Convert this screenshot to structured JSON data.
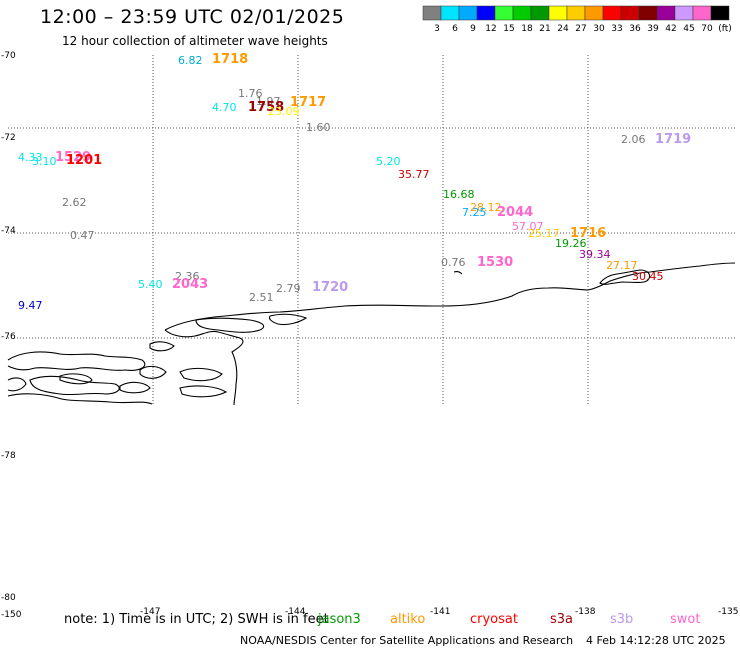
{
  "header": {
    "title": "12:00 – 23:59 UTC 02/01/2025",
    "subtitle": "12 hour collection of altimeter wave heights"
  },
  "colorbar": {
    "labels": [
      "3",
      "6",
      "9",
      "12",
      "15",
      "18",
      "21",
      "24",
      "27",
      "30",
      "33",
      "36",
      "39",
      "42",
      "45",
      "70",
      "(ft)"
    ],
    "colors": [
      "#808080",
      "#00e5ff",
      "#00aaff",
      "#0000ff",
      "#33ff33",
      "#00cc00",
      "#009900",
      "#ffff00",
      "#ffcc00",
      "#ff9900",
      "#ff0000",
      "#cc0000",
      "#800000",
      "#990099",
      "#cc99ff",
      "#ff66cc",
      "#000000"
    ]
  },
  "axes": {
    "latitudes": [
      "-70",
      "-72",
      "-74",
      "-76",
      "-78",
      "-80"
    ],
    "longitudes": [
      "-150",
      "-147",
      "-144",
      "-141",
      "-138",
      "-135"
    ]
  },
  "observations": [
    {
      "text": "6.82",
      "type": "swh",
      "color": "#00aacc"
    },
    {
      "text": "1718",
      "type": "time",
      "color": "#ff9900"
    },
    {
      "text": "1.76",
      "type": "swh",
      "color": "#777777"
    },
    {
      "text": "1.97",
      "type": "swh",
      "color": "#777777"
    },
    {
      "text": "1717",
      "type": "time",
      "color": "#ff9900"
    },
    {
      "text": "4.70",
      "type": "swh",
      "color": "#00e5e5"
    },
    {
      "text": "1758",
      "type": "time",
      "color": "#990000"
    },
    {
      "text": "23.09",
      "type": "swh",
      "color": "#ffee00"
    },
    {
      "text": "1.60",
      "type": "swh",
      "color": "#777777"
    },
    {
      "text": "2.06",
      "type": "swh",
      "color": "#777777"
    },
    {
      "text": "1719",
      "type": "time",
      "color": "#bb99ee"
    },
    {
      "text": "4.33",
      "type": "swh",
      "color": "#00e5e5"
    },
    {
      "text": "1529",
      "type": "time",
      "color": "#ff66cc"
    },
    {
      "text": "3.10",
      "type": "swh",
      "color": "#00e5e5"
    },
    {
      "text": "1201",
      "type": "time",
      "color": "#ff0000"
    },
    {
      "text": "5.20",
      "type": "swh",
      "color": "#00e5e5"
    },
    {
      "text": "35.77",
      "type": "swh",
      "color": "#cc0000"
    },
    {
      "text": "2.62",
      "type": "swh",
      "color": "#777777"
    },
    {
      "text": "16.68",
      "type": "swh",
      "color": "#009900"
    },
    {
      "text": "28.12",
      "type": "swh",
      "color": "#ff9900"
    },
    {
      "text": "7.25",
      "type": "swh",
      "color": "#00aaff"
    },
    {
      "text": "2044",
      "type": "time",
      "color": "#ff66cc"
    },
    {
      "text": "57.07",
      "type": "swh",
      "color": "#ff66cc"
    },
    {
      "text": "25.17",
      "type": "swh",
      "color": "#ffcc00"
    },
    {
      "text": "1716",
      "type": "time",
      "color": "#ff9900"
    },
    {
      "text": "19.26",
      "type": "swh",
      "color": "#009900"
    },
    {
      "text": "0.47",
      "type": "swh",
      "color": "#777777"
    },
    {
      "text": "39.34",
      "type": "swh",
      "color": "#990099"
    },
    {
      "text": "0.76",
      "type": "swh",
      "color": "#777777"
    },
    {
      "text": "1530",
      "type": "time",
      "color": "#ff66cc"
    },
    {
      "text": "27.17",
      "type": "swh",
      "color": "#ff9900"
    },
    {
      "text": "30.45",
      "type": "swh",
      "color": "#cc0000"
    },
    {
      "text": "2.36",
      "type": "swh",
      "color": "#777777"
    },
    {
      "text": "5.40",
      "type": "swh",
      "color": "#00e5e5"
    },
    {
      "text": "2043",
      "type": "time",
      "color": "#ff66cc"
    },
    {
      "text": "2.79",
      "type": "swh",
      "color": "#777777"
    },
    {
      "text": "1720",
      "type": "time",
      "color": "#bb99ee"
    },
    {
      "text": "2.51",
      "type": "swh",
      "color": "#777777"
    },
    {
      "text": "9.47",
      "type": "swh",
      "color": "#0000cc"
    }
  ],
  "footer": {
    "note": "note:  1) Time is in UTC; 2) SWH is in feet",
    "satellites": [
      {
        "name": "jason3",
        "color": "#009900"
      },
      {
        "name": "altiko",
        "color": "#ff9900"
      },
      {
        "name": "cryosat",
        "color": "#ff0000"
      },
      {
        "name": "s3a",
        "color": "#990000"
      },
      {
        "name": "s3b",
        "color": "#bb99ee"
      },
      {
        "name": "swot",
        "color": "#ff66cc"
      }
    ],
    "credit": "NOAA/NESDIS Center for Satellite Applications and Research",
    "timestamp": "4 Feb 14:12:28 UTC 2025"
  }
}
